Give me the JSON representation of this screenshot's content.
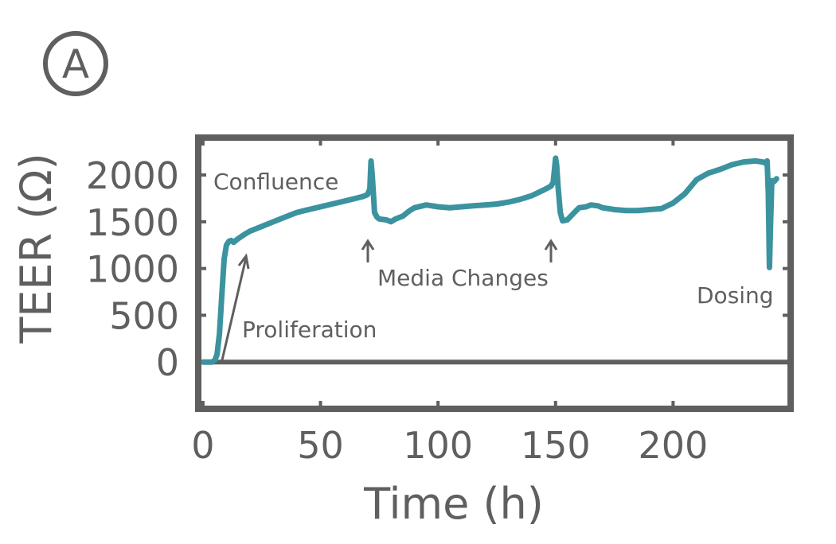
{
  "panel_label": "A",
  "chart_data": {
    "type": "line",
    "title": "",
    "xlabel": "Time (h)",
    "ylabel": "TEER (Ω)",
    "xlim": [
      -2,
      250
    ],
    "ylim": [
      -500,
      2400
    ],
    "xticks": [
      0,
      50,
      100,
      150,
      200
    ],
    "yticks": [
      0,
      500,
      1000,
      1500,
      2000
    ],
    "grid": false,
    "colors": {
      "line": "#3b939f",
      "axes": "#5f5f5f",
      "annotation": "#5f5f5f"
    },
    "series": [
      {
        "x": [
          0,
          2,
          4,
          5,
          6,
          7,
          8,
          9,
          10,
          11,
          12,
          13,
          15,
          18,
          20,
          25,
          30,
          35,
          38,
          40,
          45,
          50,
          55,
          60,
          65,
          68,
          70,
          71,
          71.5,
          72,
          72.5,
          73,
          74,
          75,
          78,
          80,
          82,
          85,
          88,
          90,
          95,
          100,
          105,
          110,
          115,
          120,
          125,
          130,
          135,
          140,
          145,
          148,
          149,
          150,
          150.5,
          151,
          152,
          153,
          155,
          158,
          160,
          163,
          165,
          168,
          170,
          175,
          180,
          185,
          190,
          195,
          200,
          205,
          210,
          215,
          220,
          225,
          230,
          235,
          238,
          239,
          240,
          240.5,
          241,
          241.5,
          242,
          243,
          244
        ],
        "y": [
          0,
          0,
          0,
          20,
          80,
          300,
          700,
          1100,
          1250,
          1290,
          1300,
          1280,
          1320,
          1370,
          1400,
          1450,
          1500,
          1550,
          1580,
          1600,
          1630,
          1660,
          1690,
          1720,
          1750,
          1770,
          1790,
          1850,
          2150,
          2000,
          1800,
          1600,
          1550,
          1530,
          1520,
          1500,
          1530,
          1560,
          1620,
          1650,
          1680,
          1660,
          1650,
          1660,
          1670,
          1680,
          1690,
          1710,
          1740,
          1780,
          1840,
          1880,
          1920,
          2180,
          2100,
          1900,
          1600,
          1510,
          1520,
          1600,
          1650,
          1660,
          1680,
          1670,
          1650,
          1630,
          1620,
          1620,
          1630,
          1640,
          1700,
          1800,
          1950,
          2020,
          2060,
          2110,
          2140,
          2150,
          2140,
          2130,
          2150,
          1800,
          1010,
          1500,
          1940,
          1930,
          1960
        ]
      }
    ],
    "annotations": {
      "confluence": "Confluence",
      "proliferation": "Proliferation",
      "media_changes": "Media Changes",
      "dosing": "Dosing"
    }
  }
}
